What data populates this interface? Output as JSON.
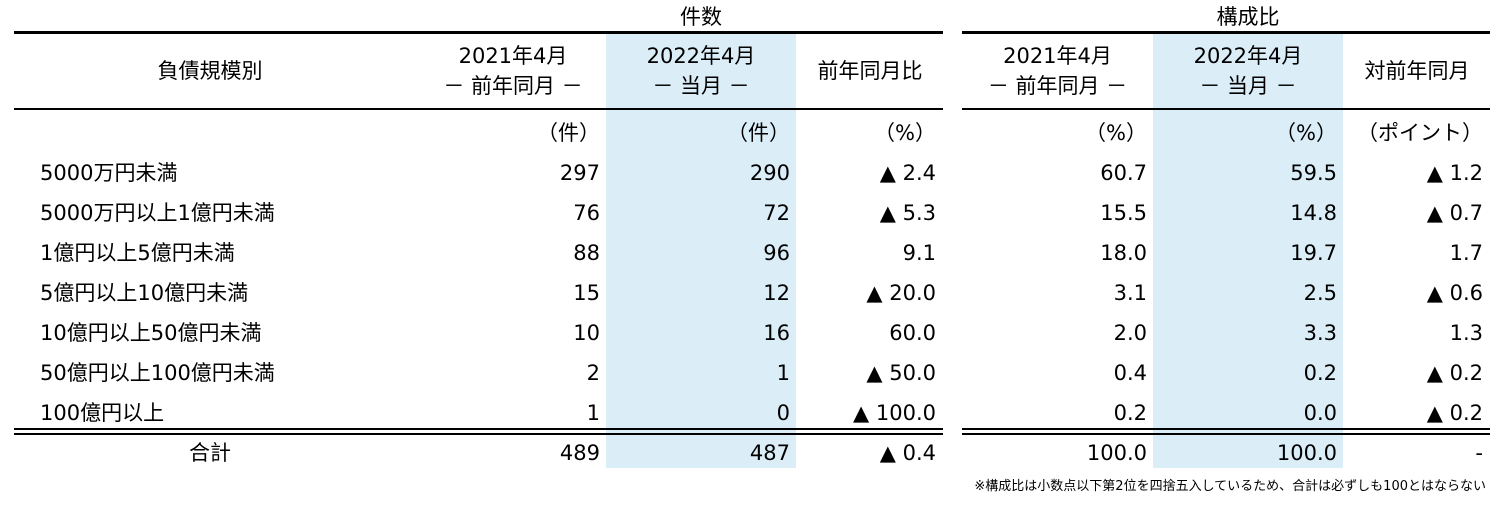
{
  "group_headers": {
    "count": "件数",
    "composition": "構成比"
  },
  "columns": {
    "category": "負債規模別",
    "prev_year_line1": "2021年4月",
    "prev_year_line2": "－ 前年同月 －",
    "current_line1": "2022年4月",
    "current_line2": "－ 当月 －",
    "yoy_ratio": "前年同月比",
    "comp_prev_line1": "2021年4月",
    "comp_prev_line2": "－ 前年同月 －",
    "comp_current_line1": "2022年4月",
    "comp_current_line2": "－ 当月 －",
    "comp_diff": "対前年同月"
  },
  "units": {
    "prev": "（件）",
    "current": "（件）",
    "yoy": "（%）",
    "comp_prev": "（%）",
    "comp_current": "（%）",
    "comp_diff": "（ポイント）"
  },
  "rows": [
    {
      "label": "5000万円未満",
      "prev": "297",
      "current": "290",
      "yoy": "▲ 2.4",
      "comp_prev": "60.7",
      "comp_current": "59.5",
      "comp_diff": "▲ 1.2"
    },
    {
      "label": "5000万円以上1億円未満",
      "prev": "76",
      "current": "72",
      "yoy": "▲ 5.3",
      "comp_prev": "15.5",
      "comp_current": "14.8",
      "comp_diff": "▲ 0.7"
    },
    {
      "label": "1億円以上5億円未満",
      "prev": "88",
      "current": "96",
      "yoy": "9.1",
      "comp_prev": "18.0",
      "comp_current": "19.7",
      "comp_diff": "1.7"
    },
    {
      "label": "5億円以上10億円未満",
      "prev": "15",
      "current": "12",
      "yoy": "▲ 20.0",
      "comp_prev": "3.1",
      "comp_current": "2.5",
      "comp_diff": "▲ 0.6"
    },
    {
      "label": "10億円以上50億円未満",
      "prev": "10",
      "current": "16",
      "yoy": "60.0",
      "comp_prev": "2.0",
      "comp_current": "3.3",
      "comp_diff": "1.3"
    },
    {
      "label": "50億円以上100億円未満",
      "prev": "2",
      "current": "1",
      "yoy": "▲ 50.0",
      "comp_prev": "0.4",
      "comp_current": "0.2",
      "comp_diff": "▲ 0.2"
    },
    {
      "label": "100億円以上",
      "prev": "1",
      "current": "0",
      "yoy": "▲ 100.0",
      "comp_prev": "0.2",
      "comp_current": "0.0",
      "comp_diff": "▲ 0.2"
    }
  ],
  "total": {
    "label": "合計",
    "prev": "489",
    "current": "487",
    "yoy": "▲ 0.4",
    "comp_prev": "100.0",
    "comp_current": "100.0",
    "comp_diff": "-"
  },
  "footnote": "※構成比は小数点以下第2位を四捨五入しているため、合計は必ずしも100とはならない"
}
